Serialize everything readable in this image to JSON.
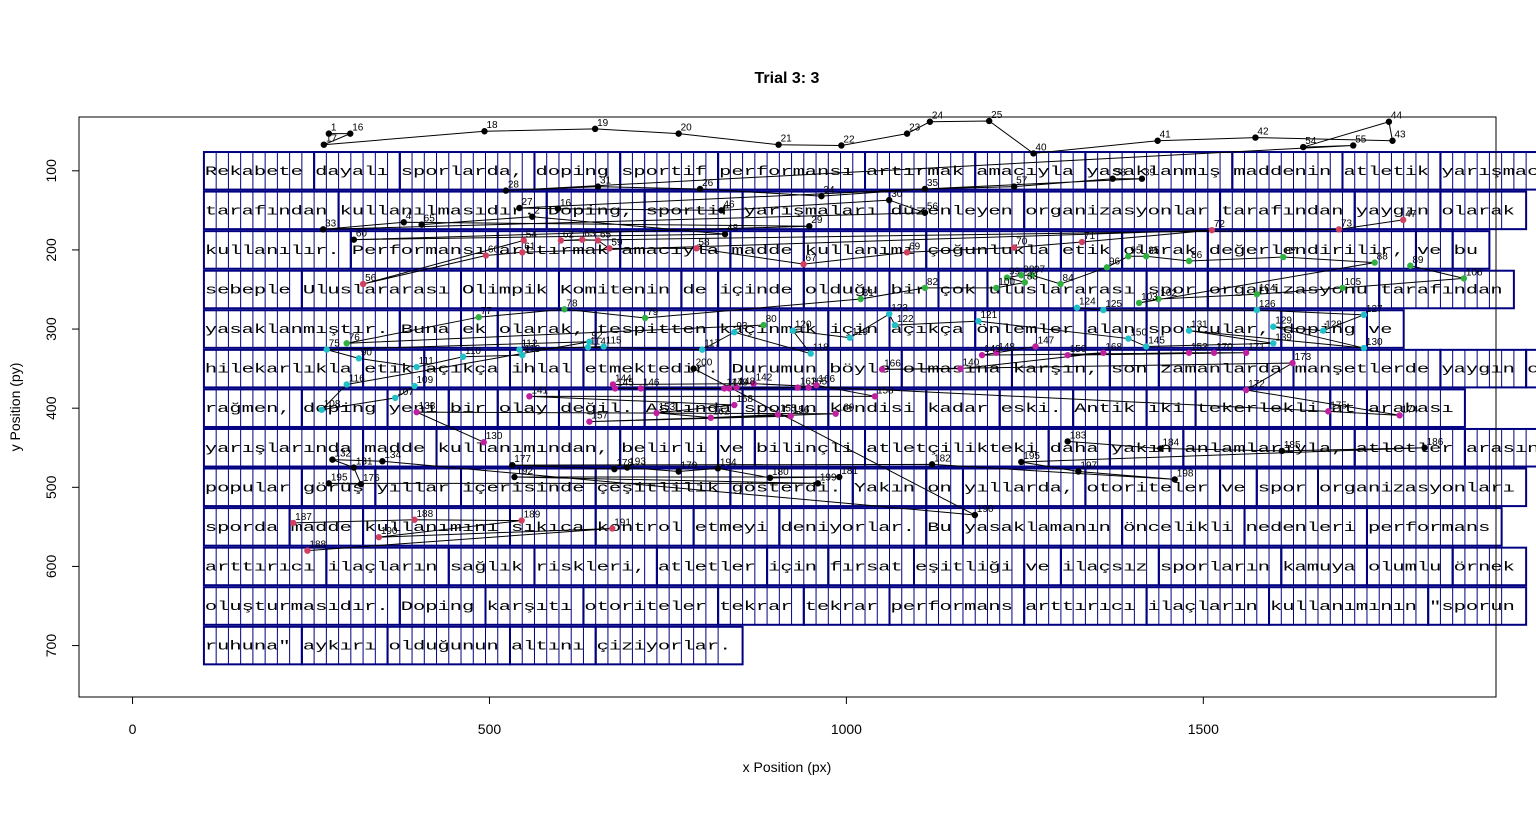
{
  "chart_data": {
    "type": "scatter",
    "title": "Trial 3: 3",
    "xlabel": "x Position (px)",
    "ylabel": "y Position (py)",
    "xlim": [
      -75,
      1910
    ],
    "ylim": [
      765,
      32
    ],
    "x_ticks": [
      0,
      500,
      1000,
      1500
    ],
    "y_ticks": [
      100,
      200,
      300,
      400,
      500,
      600,
      700
    ],
    "text_region": {
      "line_height": 50,
      "x_start": 100,
      "char_width": 17.15,
      "lines": [
        {
          "text": "Rekabete dayalı sporlarda, doping sportif performansı artırmak amacıyla yasaklanmış maddenin atletik yarışmacılar",
          "y": 100
        },
        {
          "text": "tarafından kullanılmasıdır. Doping, sportif yarışmaları düzenleyen organizasyonlar tarafından yaygın olarak",
          "y": 150
        },
        {
          "text": "kullanılır. Performansı arttırmak amacıyla madde kullanımı çoğunlukla etik olarak değerlendirilir, ve bu",
          "y": 200
        },
        {
          "text": "sebeple Uluslararası Olimpik Komitenin de içinde olduğu bir çok uluslararası spor organizasyonu tarafından",
          "y": 250
        },
        {
          "text": "yasaklanmıştır. Buna ek olarak, tespitten kaçınmak için açıkça önlemler alan sporcular, doping ve",
          "y": 300
        },
        {
          "text": "hilekarlıkla etik açıkça ihlal etmektedir. Durumun böyle olmasına karşın, son zamanlarda manşetlerde yaygın olmasına",
          "y": 350
        },
        {
          "text": "rağmen, doping yeni bir olay değil. Aslında sporun kendisi kadar eski. Antik iki tekerlekli at arabası",
          "y": 400
        },
        {
          "text": "yarışlarında madde kullanımından, belirli ve bilinçli atletçilikteki daha yakın anlamlarıyla, atletler arasındaki",
          "y": 450
        },
        {
          "text": "popular görüş yıllar içerisinde çeşitlilik gösterdi. Yakın on yıllarda, otoriteler ve spor organizasyonları",
          "y": 500
        },
        {
          "text": "sporda madde kullanımını sıkıca kontrol etmeyi deniyorlar. Bu yasaklamanın öncelikli nedenleri performans",
          "y": 550
        },
        {
          "text": "arttırıcı ilaçların sağlık riskleri, atletler için fırsat eşitliği ve ilaçsız sporların kamuya olumlu örnek",
          "y": 600
        },
        {
          "text": "oluşturmasıdır. Doping karşıtı otoriteler tekrar tekrar performans arttırıcı ilaçların kullanımının \"sporun",
          "y": 650
        },
        {
          "text": "ruhuna\" aykırı olduğunun altını çiziyorlar.",
          "y": 700
        }
      ]
    },
    "series": [
      {
        "color": "#000000",
        "points": [
          {
            "n": 1,
            "x": 275,
            "y": 53
          },
          {
            "n": 16,
            "x": 305,
            "y": 53
          },
          {
            "n": 17,
            "x": 268,
            "y": 67
          },
          {
            "n": 18,
            "x": 493,
            "y": 50
          },
          {
            "n": 19,
            "x": 648,
            "y": 47
          },
          {
            "n": 20,
            "x": 765,
            "y": 53
          },
          {
            "n": 21,
            "x": 905,
            "y": 67
          },
          {
            "n": 22,
            "x": 993,
            "y": 68
          },
          {
            "n": 23,
            "x": 1085,
            "y": 53
          },
          {
            "n": 24,
            "x": 1117,
            "y": 38
          },
          {
            "n": 25,
            "x": 1200,
            "y": 37
          },
          {
            "n": 40,
            "x": 1262,
            "y": 78
          },
          {
            "n": 41,
            "x": 1436,
            "y": 62
          },
          {
            "n": 42,
            "x": 1573,
            "y": 58
          },
          {
            "n": 43,
            "x": 1765,
            "y": 62
          },
          {
            "n": 44,
            "x": 1760,
            "y": 38
          },
          {
            "n": 54,
            "x": 1640,
            "y": 70
          },
          {
            "n": 55,
            "x": 1710,
            "y": 68
          },
          {
            "n": 28,
            "x": 523,
            "y": 125
          },
          {
            "n": 31,
            "x": 652,
            "y": 120
          },
          {
            "n": 26,
            "x": 795,
            "y": 123
          },
          {
            "n": 34,
            "x": 965,
            "y": 132
          },
          {
            "n": 35,
            "x": 1110,
            "y": 123
          },
          {
            "n": 57,
            "x": 1235,
            "y": 120
          },
          {
            "n": 38,
            "x": 1373,
            "y": 110
          },
          {
            "n": 39,
            "x": 1414,
            "y": 110
          },
          {
            "n": 27,
            "x": 542,
            "y": 147
          },
          {
            "n": 16,
            "x": 596,
            "y": 148
          },
          {
            "n": 46,
            "x": 825,
            "y": 150
          },
          {
            "n": 30,
            "x": 1060,
            "y": 137
          },
          {
            "n": 56,
            "x": 1110,
            "y": 153
          },
          {
            "n": 33,
            "x": 267,
            "y": 174
          },
          {
            "n": 4,
            "x": 380,
            "y": 165
          },
          {
            "n": 29,
            "x": 948,
            "y": 170
          },
          {
            "n": 60,
            "x": 310,
            "y": 187
          },
          {
            "n": 48,
            "x": 830,
            "y": 180
          },
          {
            "n": 2,
            "x": 560,
            "y": 158
          },
          {
            "n": 65,
            "x": 405,
            "y": 168
          }
        ]
      },
      {
        "color": "#d04060",
        "points": [
          {
            "n": 47,
            "x": 1780,
            "y": 162
          },
          {
            "n": 73,
            "x": 1690,
            "y": 174
          },
          {
            "n": 62,
            "x": 600,
            "y": 188
          },
          {
            "n": 63,
            "x": 630,
            "y": 187
          },
          {
            "n": 65,
            "x": 652,
            "y": 188
          },
          {
            "n": 59,
            "x": 668,
            "y": 198
          },
          {
            "n": 58,
            "x": 790,
            "y": 198
          },
          {
            "n": 67,
            "x": 940,
            "y": 218
          },
          {
            "n": 69,
            "x": 1085,
            "y": 203
          },
          {
            "n": 70,
            "x": 1235,
            "y": 197
          },
          {
            "n": 71,
            "x": 1330,
            "y": 190
          },
          {
            "n": 72,
            "x": 1512,
            "y": 175
          },
          {
            "n": 61,
            "x": 546,
            "y": 203
          },
          {
            "n": 60,
            "x": 495,
            "y": 207
          },
          {
            "n": 56,
            "x": 323,
            "y": 243
          },
          {
            "n": 54,
            "x": 548,
            "y": 188
          }
        ]
      },
      {
        "color": "#30b040",
        "points": [
          {
            "n": 89,
            "x": 1790,
            "y": 220
          },
          {
            "n": 106,
            "x": 1865,
            "y": 236
          },
          {
            "n": 105,
            "x": 1695,
            "y": 248
          },
          {
            "n": 104,
            "x": 1575,
            "y": 256
          },
          {
            "n": 102,
            "x": 1437,
            "y": 262
          },
          {
            "n": 103,
            "x": 1410,
            "y": 267
          },
          {
            "n": 88,
            "x": 1740,
            "y": 216
          },
          {
            "n": 87,
            "x": 1612,
            "y": 209
          },
          {
            "n": 86,
            "x": 1480,
            "y": 214
          },
          {
            "n": 85,
            "x": 1420,
            "y": 208
          },
          {
            "n": 95,
            "x": 1395,
            "y": 208
          },
          {
            "n": 96,
            "x": 1365,
            "y": 222
          },
          {
            "n": 84,
            "x": 1300,
            "y": 243
          },
          {
            "n": 97,
            "x": 1260,
            "y": 232
          },
          {
            "n": 98,
            "x": 1245,
            "y": 232
          },
          {
            "n": 99,
            "x": 1225,
            "y": 235
          },
          {
            "n": 83,
            "x": 1250,
            "y": 241
          },
          {
            "n": 100,
            "x": 1210,
            "y": 248
          },
          {
            "n": 82,
            "x": 1110,
            "y": 248
          },
          {
            "n": 81,
            "x": 1020,
            "y": 262
          },
          {
            "n": 79,
            "x": 718,
            "y": 286
          },
          {
            "n": 78,
            "x": 605,
            "y": 275
          },
          {
            "n": 77,
            "x": 485,
            "y": 285
          },
          {
            "n": 76,
            "x": 300,
            "y": 318
          },
          {
            "n": 80,
            "x": 884,
            "y": 295
          }
        ]
      },
      {
        "color": "#20c0c8",
        "points": [
          {
            "n": 124,
            "x": 1323,
            "y": 273
          },
          {
            "n": 125,
            "x": 1360,
            "y": 276
          },
          {
            "n": 126,
            "x": 1575,
            "y": 276
          },
          {
            "n": 127,
            "x": 1725,
            "y": 282
          },
          {
            "n": 128,
            "x": 1668,
            "y": 302
          },
          {
            "n": 129,
            "x": 1598,
            "y": 297
          },
          {
            "n": 130,
            "x": 1725,
            "y": 324
          },
          {
            "n": 131,
            "x": 1480,
            "y": 302
          },
          {
            "n": 139,
            "x": 1598,
            "y": 318
          },
          {
            "n": 145,
            "x": 1420,
            "y": 322
          },
          {
            "n": 150,
            "x": 1395,
            "y": 312
          },
          {
            "n": 121,
            "x": 1185,
            "y": 290
          },
          {
            "n": 122,
            "x": 1068,
            "y": 295
          },
          {
            "n": 123,
            "x": 1060,
            "y": 281
          },
          {
            "n": 119,
            "x": 1005,
            "y": 311
          },
          {
            "n": 120,
            "x": 925,
            "y": 302
          },
          {
            "n": 118,
            "x": 950,
            "y": 331
          },
          {
            "n": 93,
            "x": 843,
            "y": 304
          },
          {
            "n": 117,
            "x": 798,
            "y": 326
          },
          {
            "n": 114,
            "x": 638,
            "y": 323
          },
          {
            "n": 115,
            "x": 660,
            "y": 322
          },
          {
            "n": 112,
            "x": 542,
            "y": 326
          },
          {
            "n": 113,
            "x": 546,
            "y": 333
          },
          {
            "n": 110,
            "x": 463,
            "y": 335
          },
          {
            "n": 111,
            "x": 398,
            "y": 348
          },
          {
            "n": 90,
            "x": 317,
            "y": 337
          },
          {
            "n": 75,
            "x": 272,
            "y": 326
          },
          {
            "n": 92,
            "x": 640,
            "y": 316
          },
          {
            "n": 116,
            "x": 300,
            "y": 370
          },
          {
            "n": 108,
            "x": 265,
            "y": 402
          },
          {
            "n": 107,
            "x": 368,
            "y": 387
          },
          {
            "n": 109,
            "x": 395,
            "y": 372
          }
        ]
      },
      {
        "color": "#c020a0",
        "points": [
          {
            "n": 147,
            "x": 1265,
            "y": 322
          },
          {
            "n": 148,
            "x": 1210,
            "y": 330
          },
          {
            "n": 149,
            "x": 1190,
            "y": 333
          },
          {
            "n": 153,
            "x": 1480,
            "y": 330
          },
          {
            "n": 170,
            "x": 1515,
            "y": 330
          },
          {
            "n": 171,
            "x": 1560,
            "y": 330
          },
          {
            "n": 150,
            "x": 1310,
            "y": 333
          },
          {
            "n": 168,
            "x": 1360,
            "y": 330
          },
          {
            "n": 140,
            "x": 1160,
            "y": 350
          },
          {
            "n": 166,
            "x": 1050,
            "y": 351
          },
          {
            "n": 173,
            "x": 1625,
            "y": 343
          },
          {
            "n": 172,
            "x": 1560,
            "y": 377
          },
          {
            "n": 174,
            "x": 1775,
            "y": 409
          },
          {
            "n": 175,
            "x": 1675,
            "y": 404
          },
          {
            "n": 142,
            "x": 870,
            "y": 369
          },
          {
            "n": 144,
            "x": 673,
            "y": 370
          },
          {
            "n": 145,
            "x": 676,
            "y": 375
          },
          {
            "n": 146,
            "x": 712,
            "y": 375
          },
          {
            "n": 147,
            "x": 829,
            "y": 375
          },
          {
            "n": 148,
            "x": 846,
            "y": 374
          },
          {
            "n": 149,
            "x": 836,
            "y": 375
          },
          {
            "n": 163,
            "x": 932,
            "y": 374
          },
          {
            "n": 165,
            "x": 947,
            "y": 374
          },
          {
            "n": 166,
            "x": 958,
            "y": 371
          },
          {
            "n": 158,
            "x": 1040,
            "y": 385
          },
          {
            "n": 141,
            "x": 556,
            "y": 385
          },
          {
            "n": 168,
            "x": 843,
            "y": 396
          },
          {
            "n": 153,
            "x": 734,
            "y": 406
          },
          {
            "n": 162,
            "x": 810,
            "y": 412
          },
          {
            "n": 155,
            "x": 904,
            "y": 408
          },
          {
            "n": 156,
            "x": 922,
            "y": 410
          },
          {
            "n": 157,
            "x": 640,
            "y": 417
          },
          {
            "n": 160,
            "x": 985,
            "y": 407
          },
          {
            "n": 138,
            "x": 398,
            "y": 405
          },
          {
            "n": 130,
            "x": 492,
            "y": 443
          }
        ]
      },
      {
        "color": "#000000",
        "points": [
          {
            "n": 183,
            "x": 1310,
            "y": 442
          },
          {
            "n": 184,
            "x": 1440,
            "y": 451
          },
          {
            "n": 185,
            "x": 1610,
            "y": 454
          },
          {
            "n": 186,
            "x": 1810,
            "y": 450
          },
          {
            "n": 195,
            "x": 1245,
            "y": 468
          },
          {
            "n": 197,
            "x": 1325,
            "y": 480
          },
          {
            "n": 198,
            "x": 1460,
            "y": 490
          },
          {
            "n": 182,
            "x": 1120,
            "y": 471
          },
          {
            "n": 177,
            "x": 532,
            "y": 472
          },
          {
            "n": 178,
            "x": 675,
            "y": 477
          },
          {
            "n": 193,
            "x": 693,
            "y": 475
          },
          {
            "n": 179,
            "x": 765,
            "y": 480
          },
          {
            "n": 194,
            "x": 820,
            "y": 476
          },
          {
            "n": 180,
            "x": 893,
            "y": 488
          },
          {
            "n": 181,
            "x": 990,
            "y": 487
          },
          {
            "n": 192,
            "x": 535,
            "y": 487
          },
          {
            "n": 199,
            "x": 960,
            "y": 495
          },
          {
            "n": 195,
            "x": 275,
            "y": 495
          },
          {
            "n": 176,
            "x": 320,
            "y": 496
          },
          {
            "n": 131,
            "x": 310,
            "y": 475
          },
          {
            "n": 132,
            "x": 280,
            "y": 465
          },
          {
            "n": 134,
            "x": 350,
            "y": 467
          },
          {
            "n": 190,
            "x": 1180,
            "y": 535
          },
          {
            "n": 200,
            "x": 786,
            "y": 350
          }
        ]
      },
      {
        "color": "#d04060",
        "points": [
          {
            "n": 187,
            "x": 225,
            "y": 545
          },
          {
            "n": 188,
            "x": 395,
            "y": 541
          },
          {
            "n": 189,
            "x": 545,
            "y": 542
          },
          {
            "n": 190,
            "x": 345,
            "y": 563
          },
          {
            "n": 191,
            "x": 672,
            "y": 552
          },
          {
            "n": 188,
            "x": 245,
            "y": 580
          }
        ]
      }
    ]
  }
}
